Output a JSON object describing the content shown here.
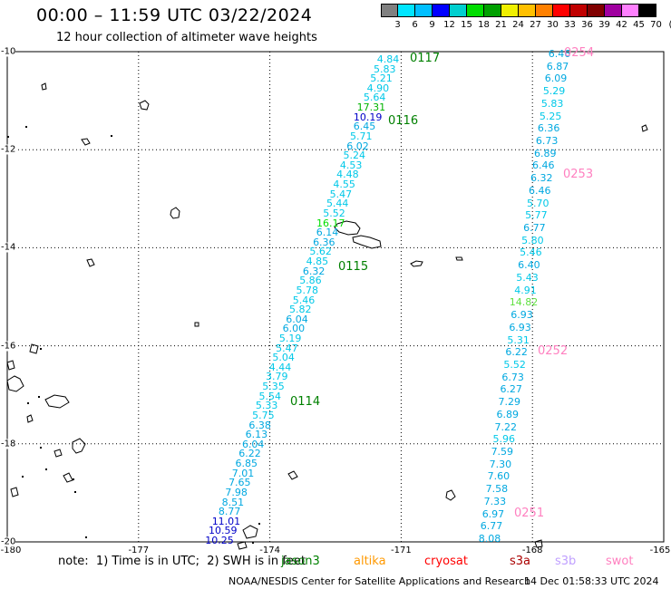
{
  "header": {
    "title": "00:00 – 11:59 UTC 03/22/2024",
    "subtitle": "12 hour collection of altimeter wave heights"
  },
  "scale": {
    "labels": [
      "3",
      "6",
      "9",
      "12",
      "15",
      "18",
      "21",
      "24",
      "27",
      "30",
      "33",
      "36",
      "39",
      "42",
      "45",
      "70",
      "(ft)"
    ],
    "colors": [
      "#808080",
      "#00e5ff",
      "#00bfff",
      "#0000ff",
      "#00cfcf",
      "#00dd00",
      "#00a000",
      "#f0f000",
      "#ffc000",
      "#ff8000",
      "#ff0000",
      "#c00000",
      "#800000",
      "#a000a0",
      "#ff80ff",
      "#000000"
    ]
  },
  "axes": {
    "lon_labels": [
      "-180",
      "-177",
      "-174",
      "-171",
      "-168",
      "-165"
    ],
    "lat_labels": [
      "-10",
      "-12",
      "-14",
      "-16",
      "-18",
      "-20"
    ]
  },
  "tracks": {
    "left_west": [
      {
        "v": "4.84",
        "c": "#00c8e8"
      },
      {
        "v": "5.83",
        "c": "#00c8e8"
      },
      {
        "v": "5.21",
        "c": "#00c8e8"
      },
      {
        "v": "4.90",
        "c": "#00c8e8"
      },
      {
        "v": "5.64",
        "c": "#00c8e8"
      },
      {
        "v": "17.31",
        "c": "#00b400"
      },
      {
        "v": "10.19",
        "c": "#0000c8"
      },
      {
        "v": "6.45",
        "c": "#00a8e0"
      },
      {
        "v": "5.71",
        "c": "#00c8e8"
      },
      {
        "v": "6.02",
        "c": "#00a8e0"
      },
      {
        "v": "5.24",
        "c": "#00c8e8"
      },
      {
        "v": "4.53",
        "c": "#00c8e8"
      },
      {
        "v": "4.48",
        "c": "#00c8e8"
      },
      {
        "v": "4.55",
        "c": "#00c8e8"
      },
      {
        "v": "5.47",
        "c": "#00c8e8"
      },
      {
        "v": "5.44",
        "c": "#00c8e8"
      },
      {
        "v": "5.52",
        "c": "#00c8e8"
      },
      {
        "v": "16.17",
        "c": "#00dd00"
      },
      {
        "v": "6.14",
        "c": "#00a8e0"
      },
      {
        "v": "6.36",
        "c": "#00a8e0"
      },
      {
        "v": "5.62",
        "c": "#00c8e8"
      },
      {
        "v": "4.85",
        "c": "#00c8e8"
      },
      {
        "v": "6.32",
        "c": "#00a8e0"
      },
      {
        "v": "5.86",
        "c": "#00c8e8"
      },
      {
        "v": "5.78",
        "c": "#00c8e8"
      },
      {
        "v": "5.46",
        "c": "#00c8e8"
      },
      {
        "v": "5.82",
        "c": "#00c8e8"
      },
      {
        "v": "6.04",
        "c": "#00a8e0"
      },
      {
        "v": "6.00",
        "c": "#00a8e0"
      },
      {
        "v": "5.19",
        "c": "#00c8e8"
      },
      {
        "v": "5.47",
        "c": "#00c8e8"
      },
      {
        "v": "5.04",
        "c": "#00c8e8"
      },
      {
        "v": "4.44",
        "c": "#00c8e8"
      },
      {
        "v": "3.79",
        "c": "#00c8e8"
      },
      {
        "v": "5.35",
        "c": "#00c8e8"
      },
      {
        "v": "5.54",
        "c": "#00c8e8"
      },
      {
        "v": "5.33",
        "c": "#00c8e8"
      },
      {
        "v": "5.75",
        "c": "#00c8e8"
      },
      {
        "v": "6.38",
        "c": "#00a8e0"
      },
      {
        "v": "6.13",
        "c": "#00a8e0"
      },
      {
        "v": "6.04",
        "c": "#00a8e0"
      },
      {
        "v": "6.22",
        "c": "#00a8e0"
      },
      {
        "v": "6.85",
        "c": "#00a8e0"
      },
      {
        "v": "7.01",
        "c": "#00a8e0"
      },
      {
        "v": "7.65",
        "c": "#00a8e0"
      },
      {
        "v": "7.98",
        "c": "#00a8e0"
      },
      {
        "v": "8.51",
        "c": "#00a8e0"
      },
      {
        "v": "8.77",
        "c": "#00a8e0"
      },
      {
        "v": "11.01",
        "c": "#0000c8"
      },
      {
        "v": "10.59",
        "c": "#0000c8"
      },
      {
        "v": "10.25",
        "c": "#0000c8"
      }
    ],
    "right_east": [
      {
        "v": "6.46",
        "c": "#00a8e0"
      },
      {
        "v": "6.87",
        "c": "#00a8e0"
      },
      {
        "v": "6.09",
        "c": "#00a8e0"
      },
      {
        "v": "5.29",
        "c": "#00c8e8"
      },
      {
        "v": "5.83",
        "c": "#00c8e8"
      },
      {
        "v": "5.25",
        "c": "#00c8e8"
      },
      {
        "v": "6.36",
        "c": "#00a8e0"
      },
      {
        "v": "6.73",
        "c": "#00a8e0"
      },
      {
        "v": "6.89",
        "c": "#00a8e0"
      },
      {
        "v": "6.46",
        "c": "#00a8e0"
      },
      {
        "v": "6.32",
        "c": "#00a8e0"
      },
      {
        "v": "6.46",
        "c": "#00a8e0"
      },
      {
        "v": "5.70",
        "c": "#00c8e8"
      },
      {
        "v": "5.77",
        "c": "#00c8e8"
      },
      {
        "v": "6.77",
        "c": "#00a8e0"
      },
      {
        "v": "5.80",
        "c": "#00c8e8"
      },
      {
        "v": "5.46",
        "c": "#00c8e8"
      },
      {
        "v": "6.40",
        "c": "#00a8e0"
      },
      {
        "v": "5.43",
        "c": "#00c8e8"
      },
      {
        "v": "4.91",
        "c": "#00c8e8"
      },
      {
        "v": "14.82",
        "c": "#60e040"
      },
      {
        "v": "6.93",
        "c": "#00a8e0"
      },
      {
        "v": "6.93",
        "c": "#00a8e0"
      },
      {
        "v": "5.31",
        "c": "#00c8e8"
      },
      {
        "v": "6.22",
        "c": "#00a8e0"
      },
      {
        "v": "5.52",
        "c": "#00c8e8"
      },
      {
        "v": "6.73",
        "c": "#00a8e0"
      },
      {
        "v": "6.27",
        "c": "#00a8e0"
      },
      {
        "v": "7.29",
        "c": "#00a8e0"
      },
      {
        "v": "6.89",
        "c": "#00a8e0"
      },
      {
        "v": "7.22",
        "c": "#00a8e0"
      },
      {
        "v": "5.96",
        "c": "#00c8e8"
      },
      {
        "v": "7.59",
        "c": "#00a8e0"
      },
      {
        "v": "7.30",
        "c": "#00a8e0"
      },
      {
        "v": "7.60",
        "c": "#00a8e0"
      },
      {
        "v": "7.58",
        "c": "#00a8e0"
      },
      {
        "v": "7.33",
        "c": "#00a8e0"
      },
      {
        "v": "6.97",
        "c": "#00a8e0"
      },
      {
        "v": "6.77",
        "c": "#00a8e0"
      },
      {
        "v": "8.08",
        "c": "#00a8e0"
      }
    ]
  },
  "pass_labels": [
    {
      "t": "0117",
      "c": "#008000"
    },
    {
      "t": "0116",
      "c": "#008000"
    },
    {
      "t": "0115",
      "c": "#008000"
    },
    {
      "t": "0114",
      "c": "#008000"
    },
    {
      "t": "0254",
      "c": "#ff80c0"
    },
    {
      "t": "0253",
      "c": "#ff80c0"
    },
    {
      "t": "0252",
      "c": "#ff80c0"
    },
    {
      "t": "0251",
      "c": "#ff80c0"
    }
  ],
  "notes": {
    "note_text": "note:  1) Time is in UTC;  2) SWH is in feet",
    "satellites": [
      {
        "name": "jason3",
        "color": "#008000"
      },
      {
        "name": "altika",
        "color": "#ff9900"
      },
      {
        "name": "cryosat",
        "color": "#ff0000"
      },
      {
        "name": "s3a",
        "color": "#aa0000"
      },
      {
        "name": "s3b",
        "color": "#c0a0ff"
      },
      {
        "name": "swot",
        "color": "#ff80c0"
      }
    ],
    "footer": "NOAA/NESDIS Center for Satellite Applications and Research",
    "footer_date": "14 Dec 01:58:33 UTC 2024"
  }
}
